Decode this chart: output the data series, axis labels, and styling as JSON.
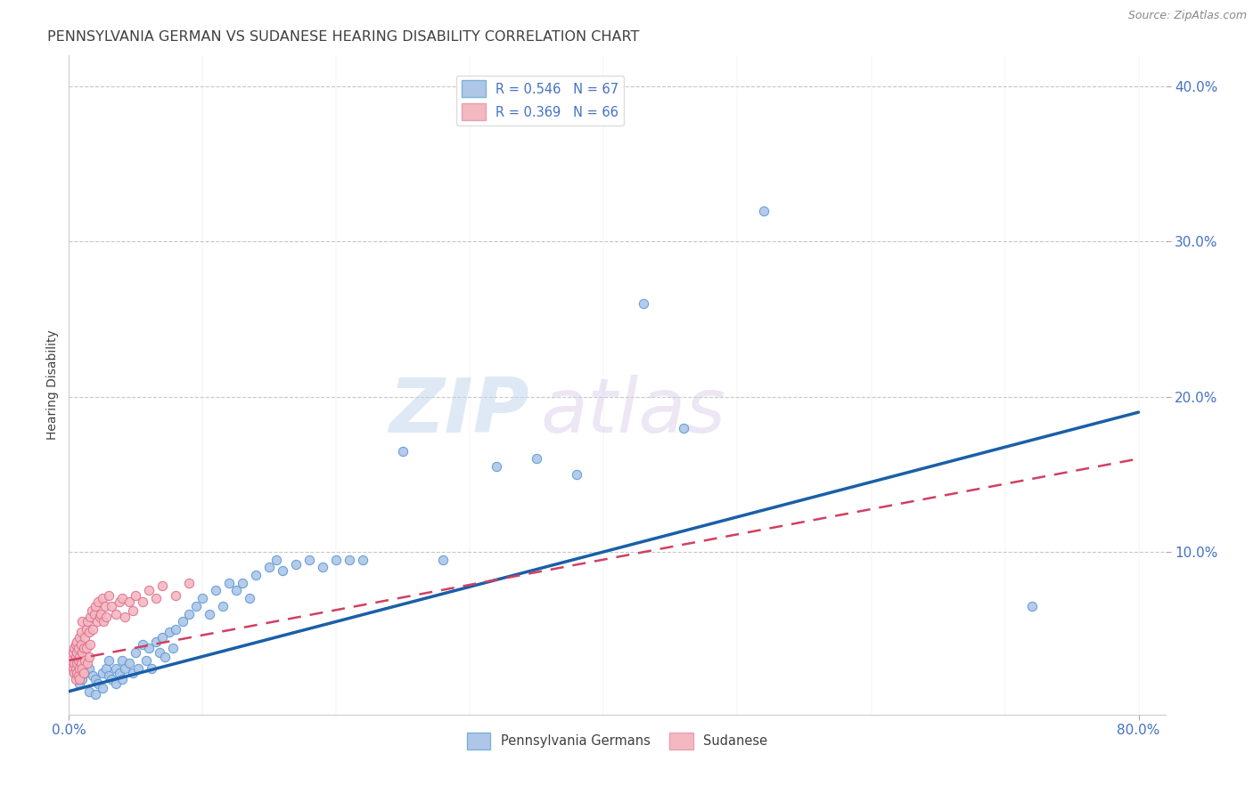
{
  "title": "PENNSYLVANIA GERMAN VS SUDANESE HEARING DISABILITY CORRELATION CHART",
  "source": "Source: ZipAtlas.com",
  "ylabel": "Hearing Disability",
  "xlim": [
    0.0,
    0.82
  ],
  "ylim": [
    -0.005,
    0.42
  ],
  "xticks_minor": [
    0.0,
    0.1,
    0.2,
    0.3,
    0.4,
    0.5,
    0.6,
    0.7,
    0.8
  ],
  "xticks_labeled": [
    0.0,
    0.8
  ],
  "xtick_labels": [
    "0.0%",
    "80.0%"
  ],
  "yticks": [
    0.1,
    0.2,
    0.3,
    0.4
  ],
  "ytick_labels": [
    "10.0%",
    "20.0%",
    "30.0%",
    "40.0%"
  ],
  "legend_entries": [
    {
      "label": "R = 0.546   N = 67",
      "color": "#aec6e8",
      "edge": "#7ab3d9"
    },
    {
      "label": "R = 0.369   N = 66",
      "color": "#f4b8c1",
      "edge": "#e8a0b0"
    }
  ],
  "legend_bottom": [
    "Pennsylvania Germans",
    "Sudanese"
  ],
  "watermark_zip": "ZIP",
  "watermark_atlas": "atlas",
  "blue_scatter_x": [
    0.005,
    0.008,
    0.01,
    0.012,
    0.015,
    0.015,
    0.018,
    0.02,
    0.02,
    0.022,
    0.025,
    0.025,
    0.028,
    0.03,
    0.03,
    0.032,
    0.035,
    0.035,
    0.038,
    0.04,
    0.04,
    0.042,
    0.045,
    0.048,
    0.05,
    0.052,
    0.055,
    0.058,
    0.06,
    0.062,
    0.065,
    0.068,
    0.07,
    0.072,
    0.075,
    0.078,
    0.08,
    0.085,
    0.09,
    0.095,
    0.1,
    0.105,
    0.11,
    0.115,
    0.12,
    0.125,
    0.13,
    0.135,
    0.14,
    0.15,
    0.155,
    0.16,
    0.17,
    0.18,
    0.19,
    0.2,
    0.21,
    0.22,
    0.25,
    0.28,
    0.32,
    0.35,
    0.38,
    0.43,
    0.46,
    0.52,
    0.72
  ],
  "blue_scatter_y": [
    0.02,
    0.015,
    0.018,
    0.022,
    0.025,
    0.01,
    0.02,
    0.018,
    0.008,
    0.015,
    0.022,
    0.012,
    0.025,
    0.02,
    0.03,
    0.018,
    0.025,
    0.015,
    0.022,
    0.03,
    0.018,
    0.025,
    0.028,
    0.022,
    0.035,
    0.025,
    0.04,
    0.03,
    0.038,
    0.025,
    0.042,
    0.035,
    0.045,
    0.032,
    0.048,
    0.038,
    0.05,
    0.055,
    0.06,
    0.065,
    0.07,
    0.06,
    0.075,
    0.065,
    0.08,
    0.075,
    0.08,
    0.07,
    0.085,
    0.09,
    0.095,
    0.088,
    0.092,
    0.095,
    0.09,
    0.095,
    0.095,
    0.095,
    0.165,
    0.095,
    0.155,
    0.16,
    0.15,
    0.26,
    0.18,
    0.32,
    0.065
  ],
  "pink_scatter_x": [
    0.002,
    0.003,
    0.003,
    0.004,
    0.004,
    0.004,
    0.005,
    0.005,
    0.005,
    0.005,
    0.006,
    0.006,
    0.006,
    0.006,
    0.007,
    0.007,
    0.007,
    0.008,
    0.008,
    0.008,
    0.008,
    0.009,
    0.009,
    0.009,
    0.01,
    0.01,
    0.01,
    0.011,
    0.011,
    0.012,
    0.012,
    0.013,
    0.013,
    0.014,
    0.014,
    0.015,
    0.015,
    0.016,
    0.016,
    0.017,
    0.018,
    0.019,
    0.02,
    0.021,
    0.022,
    0.023,
    0.024,
    0.025,
    0.026,
    0.027,
    0.028,
    0.03,
    0.032,
    0.035,
    0.038,
    0.04,
    0.042,
    0.045,
    0.048,
    0.05,
    0.055,
    0.06,
    0.065,
    0.07,
    0.08,
    0.09
  ],
  "pink_scatter_y": [
    0.03,
    0.025,
    0.035,
    0.028,
    0.038,
    0.022,
    0.032,
    0.025,
    0.04,
    0.018,
    0.028,
    0.035,
    0.022,
    0.042,
    0.03,
    0.02,
    0.038,
    0.025,
    0.045,
    0.032,
    0.018,
    0.04,
    0.028,
    0.048,
    0.035,
    0.025,
    0.055,
    0.038,
    0.022,
    0.045,
    0.03,
    0.05,
    0.038,
    0.055,
    0.028,
    0.048,
    0.032,
    0.058,
    0.04,
    0.062,
    0.05,
    0.06,
    0.065,
    0.055,
    0.068,
    0.058,
    0.06,
    0.07,
    0.055,
    0.065,
    0.058,
    0.072,
    0.065,
    0.06,
    0.068,
    0.07,
    0.058,
    0.068,
    0.062,
    0.072,
    0.068,
    0.075,
    0.07,
    0.078,
    0.072,
    0.08
  ],
  "blue_line_x": [
    0.0,
    0.8
  ],
  "blue_line_y": [
    0.01,
    0.19
  ],
  "pink_line_x": [
    0.0,
    0.8
  ],
  "pink_line_y": [
    0.03,
    0.16
  ],
  "scatter_size": 55,
  "blue_fill": "#aec6e8",
  "blue_edge": "#5b9bd5",
  "pink_fill": "#f4b8c1",
  "pink_edge": "#e07090",
  "blue_line_color": "#1a5fa8",
  "pink_line_color": "#d04060",
  "grid_color": "#c8c8c8",
  "axis_tick_color": "#4472c4",
  "title_color": "#404040",
  "title_fontsize": 11.5,
  "tick_fontsize": 11,
  "ylabel_fontsize": 10
}
